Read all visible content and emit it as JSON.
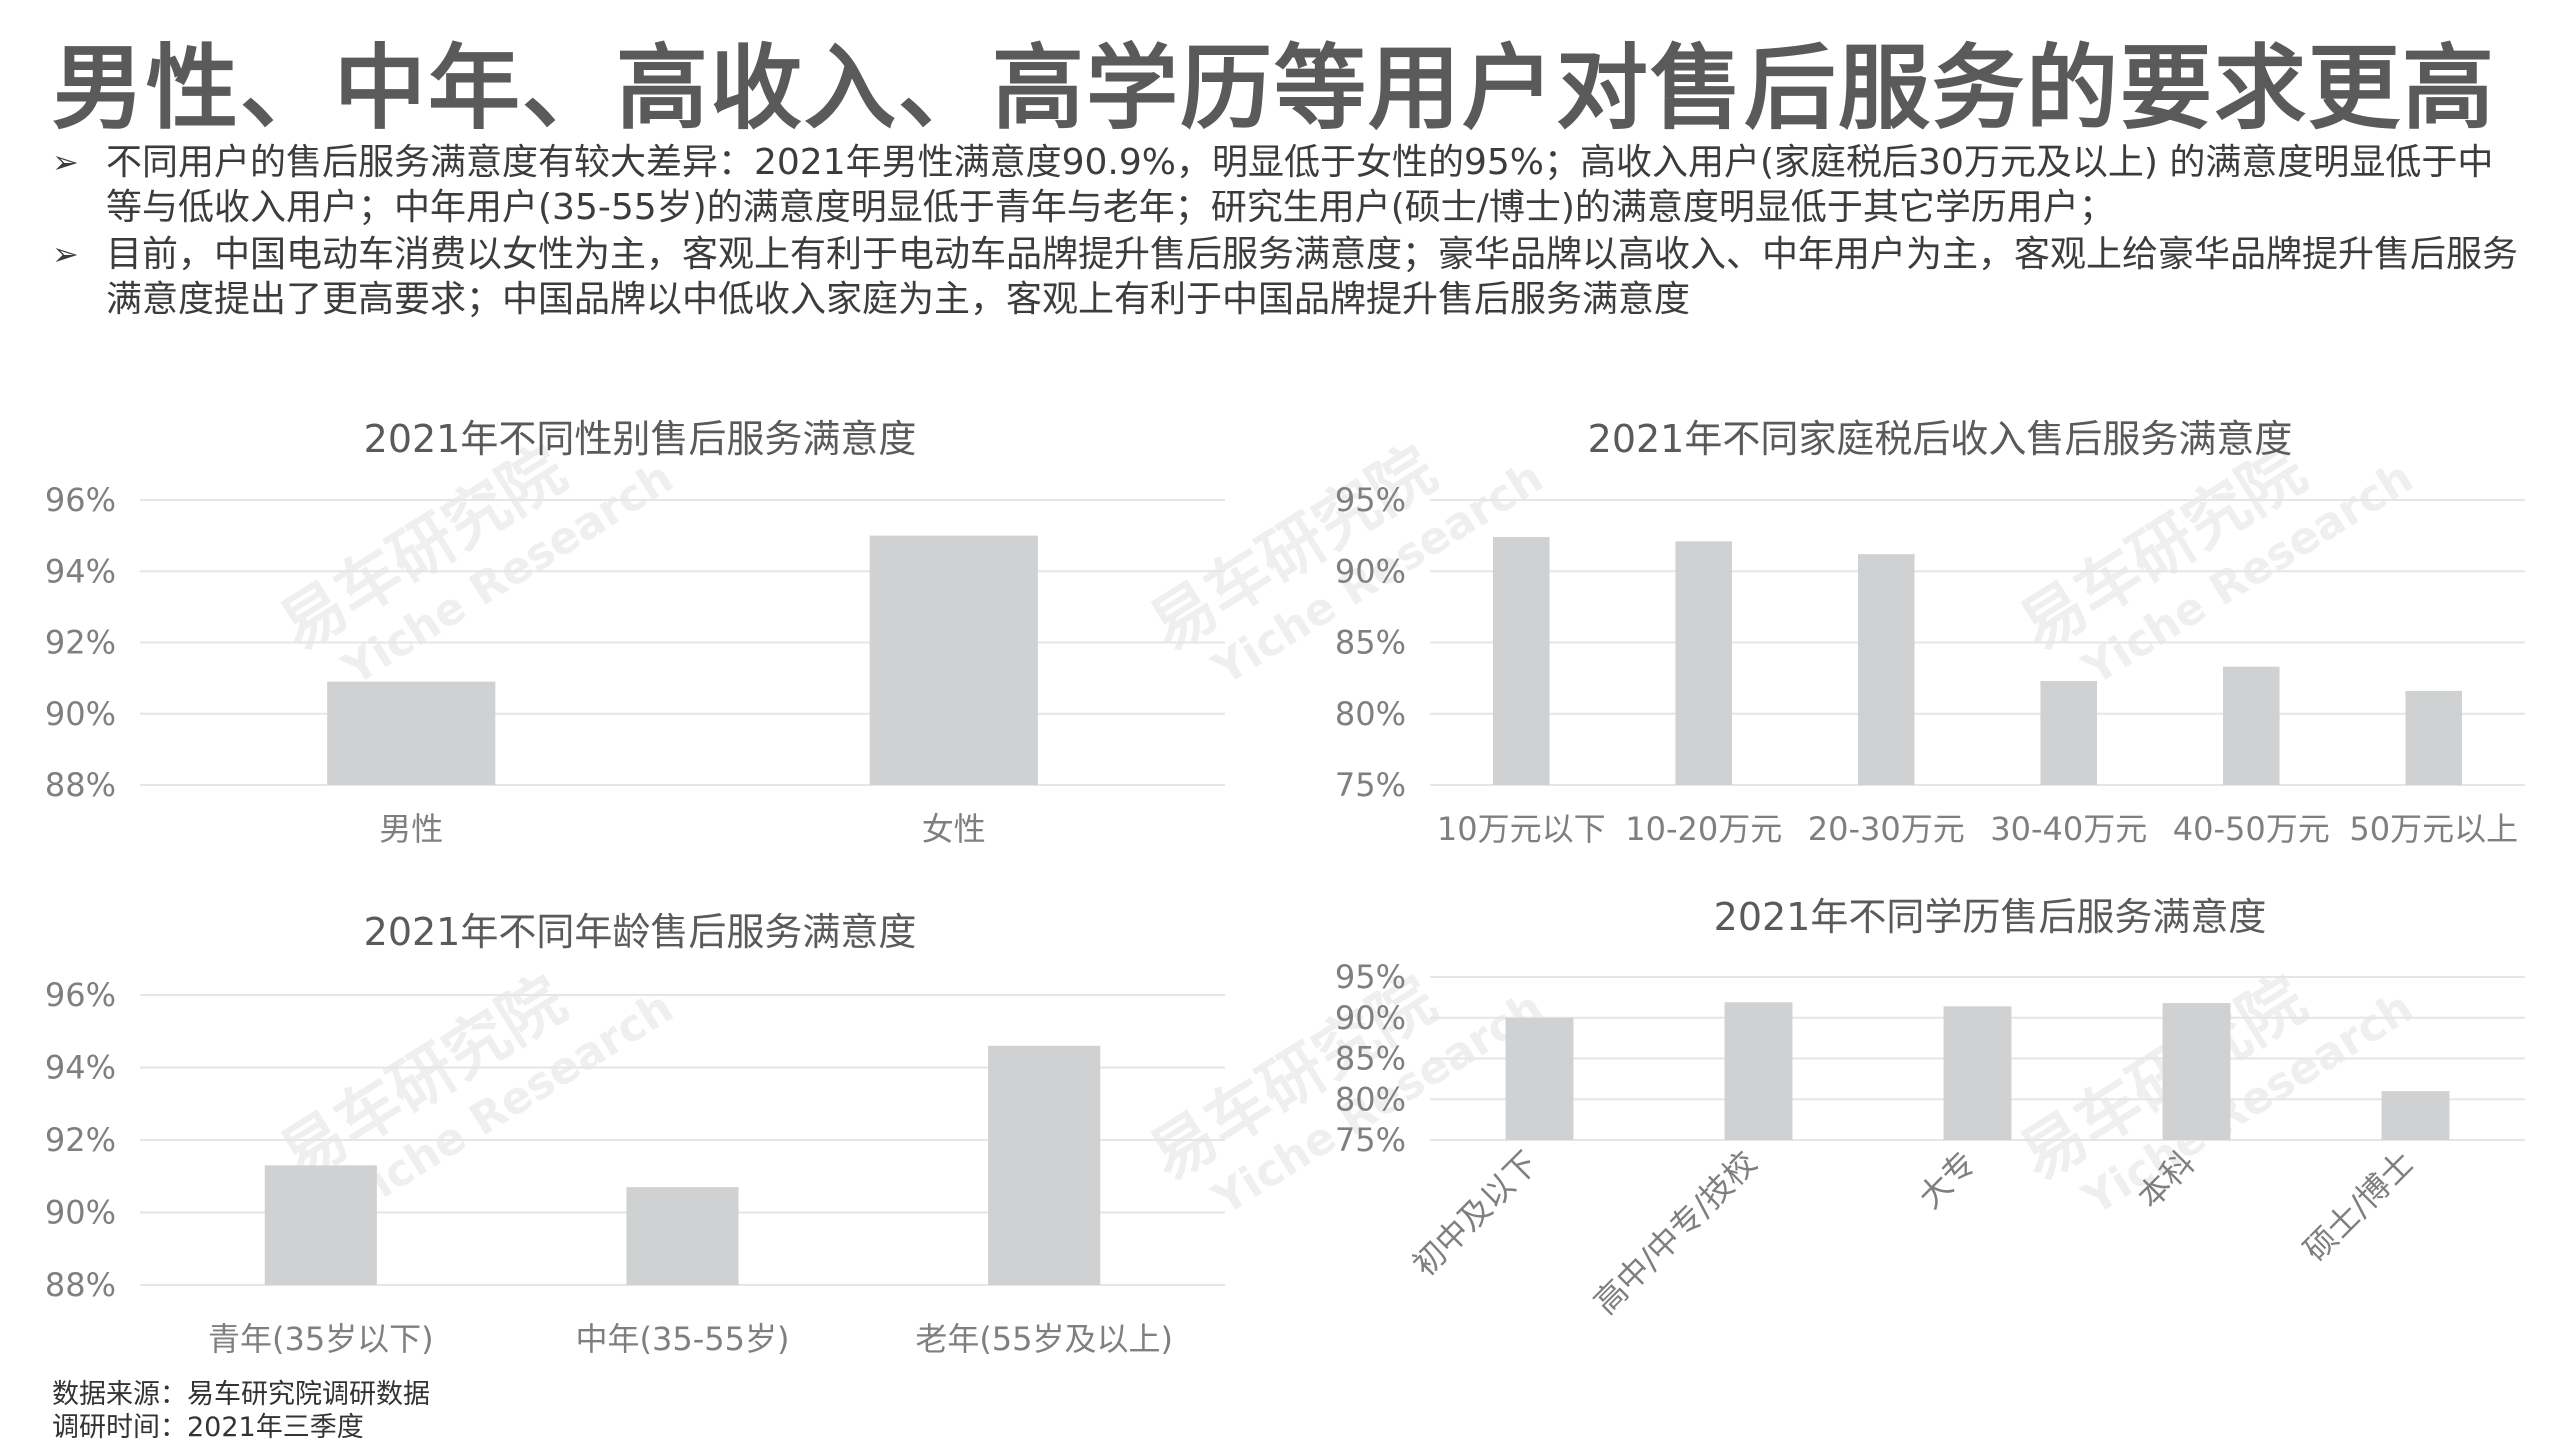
{
  "title": "男性、中年、高收入、高学历等用户对售后服务的要求更高",
  "bullets": [
    {
      "marker": "➢",
      "text": "不同用户的售后服务满意度有较大差异：2021年男性满意度90.9%，明显低于女性的95%；高收入用户(家庭税后30万元及以上) 的满意度明显低于中等与低收入用户；中年用户(35-55岁)的满意度明显低于青年与老年；研究生用户(硕士/博士)的满意度明显低于其它学历用户；"
    },
    {
      "marker": "➢",
      "text": "目前，中国电动车消费以女性为主，客观上有利于电动车品牌提升售后服务满意度；豪华品牌以高收入、中年用户为主，客观上给豪华品牌提升售后服务满意度提出了更高要求；中国品牌以中低收入家庭为主，客观上有利于中国品牌提升售后服务满意度"
    }
  ],
  "watermark": {
    "cn": "易车研究院",
    "en": "Yiche Research"
  },
  "colors": {
    "bar": "#d0d1d3",
    "grid": "#e6e6e6",
    "axis_text": "#7f7f7f",
    "title_text": "#5a5a5a"
  },
  "chart_data": [
    {
      "type": "bar",
      "title": "2021年不同性别售后服务满意度",
      "categories": [
        "男性",
        "女性"
      ],
      "values": [
        90.9,
        95.0
      ],
      "ylim": [
        88,
        96
      ],
      "yticks": [
        88,
        90,
        92,
        94,
        96
      ],
      "ytick_labels": [
        "88%",
        "90%",
        "92%",
        "94%",
        "96%"
      ],
      "grid": true
    },
    {
      "type": "bar",
      "title": "2021年不同家庭税后收入售后服务满意度",
      "categories": [
        "10万元以下",
        "10-20万元",
        "20-30万元",
        "30-40万元",
        "40-50万元",
        "50万元以上"
      ],
      "values": [
        92.4,
        92.1,
        91.2,
        82.3,
        83.3,
        81.6
      ],
      "ylim": [
        75,
        95
      ],
      "yticks": [
        75,
        80,
        85,
        90,
        95
      ],
      "ytick_labels": [
        "75%",
        "80%",
        "85%",
        "90%",
        "95%"
      ],
      "grid": true
    },
    {
      "type": "bar",
      "title": "2021年不同年龄售后服务满意度",
      "categories": [
        "青年(35岁以下)",
        "中年(35-55岁)",
        "老年(55岁及以上)"
      ],
      "values": [
        91.3,
        90.7,
        94.6
      ],
      "ylim": [
        88,
        96
      ],
      "yticks": [
        88,
        90,
        92,
        94,
        96
      ],
      "ytick_labels": [
        "88%",
        "90%",
        "92%",
        "94%",
        "96%"
      ],
      "grid": true
    },
    {
      "type": "bar",
      "title": "2021年不同学历售后服务满意度",
      "categories": [
        "初中及以下",
        "高中/中专/技校",
        "大专",
        "本科",
        "硕士/博士"
      ],
      "values": [
        90.0,
        91.9,
        91.4,
        91.8,
        81.0
      ],
      "ylim": [
        75,
        95
      ],
      "yticks": [
        75,
        80,
        85,
        90,
        95
      ],
      "ytick_labels": [
        "75%",
        "80%",
        "85%",
        "90%",
        "95%"
      ],
      "grid": true,
      "xlabel_rotation": "rotated"
    }
  ],
  "footer": {
    "source": "数据来源：易车研究院调研数据",
    "period": "调研时间：2021年三季度"
  }
}
